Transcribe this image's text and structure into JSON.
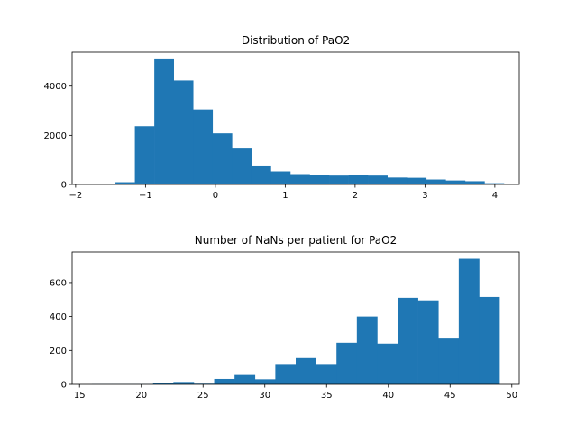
{
  "chart_data": [
    {
      "type": "bar",
      "title": "Distribution of PaO2",
      "xlabel": "",
      "ylabel": "",
      "xlim": [
        -2.05,
        4.35
      ],
      "ylim": [
        0,
        5380
      ],
      "xticks": [
        -2,
        -1,
        0,
        1,
        2,
        3,
        4
      ],
      "yticks": [
        0,
        2000,
        4000
      ],
      "bin_edges": [
        -1.43,
        -1.152,
        -0.874,
        -0.596,
        -0.318,
        -0.04,
        0.238,
        0.516,
        0.794,
        1.072,
        1.35,
        1.628,
        1.906,
        2.184,
        2.462,
        2.74,
        3.018,
        3.296,
        3.574,
        3.852,
        4.13
      ],
      "values": [
        90,
        2370,
        5090,
        4230,
        3050,
        2080,
        1460,
        770,
        530,
        420,
        370,
        360,
        370,
        360,
        280,
        270,
        200,
        160,
        130,
        50
      ],
      "color": "#1f77b4",
      "grid": false
    },
    {
      "type": "bar",
      "title": "Number of NaNs per patient for PaO2",
      "xlabel": "",
      "ylabel": "",
      "xlim": [
        14.4,
        50.6
      ],
      "ylim": [
        0,
        780
      ],
      "xticks": [
        15,
        20,
        25,
        30,
        35,
        40,
        45,
        50
      ],
      "yticks": [
        0,
        200,
        400,
        600
      ],
      "bin_edges": [
        16,
        17.65,
        19.3,
        20.95,
        22.6,
        24.25,
        25.9,
        27.55,
        29.2,
        30.85,
        32.5,
        34.15,
        35.8,
        37.45,
        39.1,
        40.75,
        42.4,
        44.05,
        45.7,
        47.35,
        49
      ],
      "values": [
        1,
        1,
        1,
        6,
        14,
        4,
        32,
        55,
        30,
        120,
        155,
        120,
        245,
        400,
        240,
        510,
        495,
        270,
        740,
        515
      ],
      "color": "#1f77b4",
      "grid": false
    }
  ]
}
